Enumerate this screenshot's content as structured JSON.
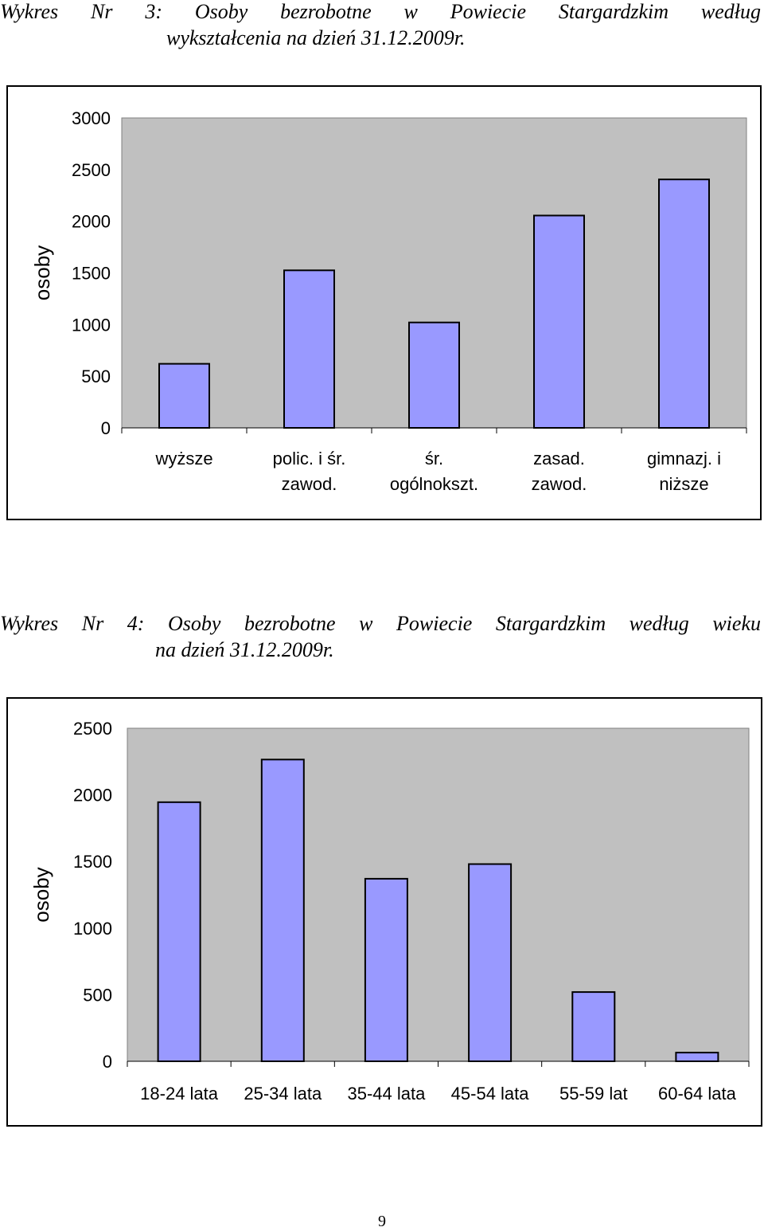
{
  "charts": [
    {
      "caption_line1": "Wykres Nr 3: Osoby bezrobotne w Powiecie Stargardzkim według",
      "caption_line2": "wykształcenia na dzień 31.12.2009r.",
      "ylabel": "osoby"
    },
    {
      "caption_line1": "Wykres Nr 4: Osoby bezrobotne w Powiecie Stargardzkim według wieku",
      "caption_line2": "na dzień 31.12.2009r.",
      "ylabel": "osoby"
    }
  ],
  "chart_data": [
    {
      "type": "bar",
      "title": "Wykres Nr 3: Osoby bezrobotne w Powiecie Stargardzkim według wykształcenia na dzień 31.12.2009r.",
      "categories": [
        [
          "wyższe"
        ],
        [
          "polic. i śr.",
          "zawod."
        ],
        [
          "śr.",
          "ogólnokszt."
        ],
        [
          "zasad.",
          "zawod."
        ],
        [
          "gimnazj. i",
          "niższe"
        ]
      ],
      "values": [
        620,
        1525,
        1020,
        2055,
        2405
      ],
      "xlabel": "",
      "ylabel": "osoby",
      "ylim": [
        0,
        3000
      ],
      "yticks": [
        0,
        500,
        1000,
        1500,
        2000,
        2500,
        3000
      ],
      "bar_color": "#9999ff",
      "plot_background": "#c0c0c0",
      "grid": false,
      "legend": "none"
    },
    {
      "type": "bar",
      "title": "Wykres Nr 4: Osoby bezrobotne w Powiecie Stargardzkim według wieku na dzień 31.12.2009r.",
      "categories": [
        [
          "18-24 lata"
        ],
        [
          "25-34 lata"
        ],
        [
          "35-44 lata"
        ],
        [
          "45-54 lata"
        ],
        [
          "55-59 lat"
        ],
        [
          "60-64 lata"
        ]
      ],
      "values": [
        1945,
        2265,
        1370,
        1480,
        520,
        65
      ],
      "xlabel": "",
      "ylabel": "osoby",
      "ylim": [
        0,
        2500
      ],
      "yticks": [
        0,
        500,
        1000,
        1500,
        2000,
        2500
      ],
      "bar_color": "#9999ff",
      "plot_background": "#c0c0c0",
      "grid": false,
      "legend": "none"
    }
  ],
  "page_number": "9"
}
